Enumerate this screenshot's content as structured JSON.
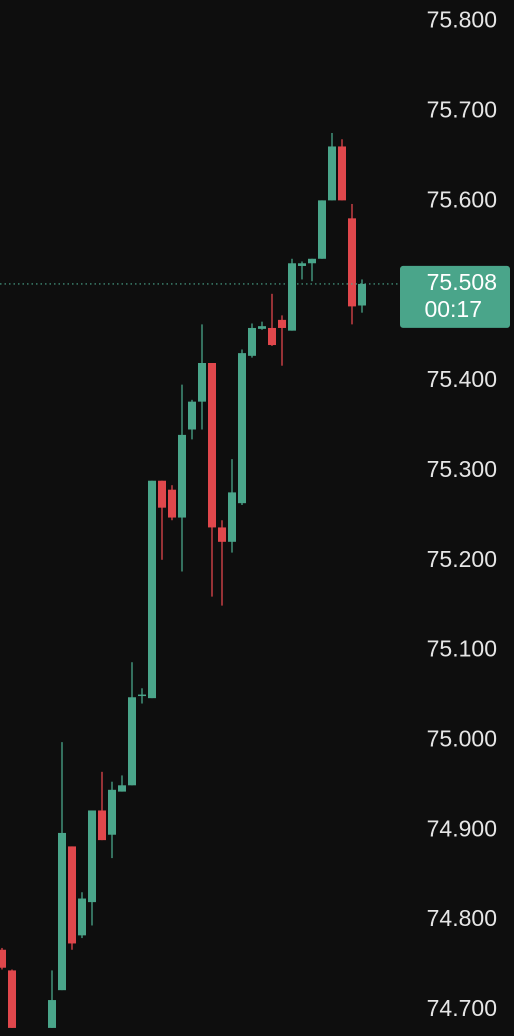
{
  "chart_data": {
    "type": "candlestick",
    "up_color": "#4aa58a",
    "down_color": "#e0474c",
    "ylim": [
      74.671,
      75.824
    ],
    "yticks": [
      {
        "value": 75.8,
        "label": "75.800"
      },
      {
        "value": 75.7,
        "label": "75.700"
      },
      {
        "value": 75.6,
        "label": "75.600"
      },
      {
        "value": 75.4,
        "label": "75.400"
      },
      {
        "value": 75.3,
        "label": "75.300"
      },
      {
        "value": 75.2,
        "label": "75.200"
      },
      {
        "value": 75.1,
        "label": "75.100"
      },
      {
        "value": 75.0,
        "label": "75.000"
      },
      {
        "value": 74.9,
        "label": "74.900"
      },
      {
        "value": 74.8,
        "label": "74.800"
      },
      {
        "value": 74.7,
        "label": "74.700"
      }
    ],
    "open": [
      74.767,
      74.744,
      null,
      null,
      null,
      74.68,
      74.722,
      74.882,
      74.783,
      74.82,
      74.922,
      74.895,
      74.943,
      74.95,
      75.05,
      75.047,
      75.289,
      75.279,
      75.248,
      75.346,
      75.377,
      75.42,
      75.237,
      75.221,
      75.264,
      75.428,
      75.458,
      75.459,
      75.468,
      75.456,
      75.528,
      75.531,
      75.536,
      75.601,
      75.661,
      75.581,
      75.484
    ],
    "high": [
      74.769,
      74.745,
      null,
      null,
      null,
      74.744,
      74.998,
      74.882,
      74.831,
      74.922,
      74.965,
      74.954,
      74.961,
      75.087,
      75.058,
      75.289,
      75.289,
      75.284,
      75.396,
      75.379,
      75.463,
      75.42,
      75.245,
      75.313,
      75.435,
      75.464,
      75.466,
      75.497,
      75.473,
      75.536,
      75.533,
      75.536,
      75.601,
      75.676,
      75.669,
      75.597,
      75.513
    ],
    "low": [
      74.745,
      74.68,
      null,
      null,
      null,
      74.68,
      74.722,
      74.767,
      74.78,
      74.794,
      74.889,
      74.869,
      74.943,
      74.95,
      75.041,
      75.047,
      75.201,
      75.245,
      75.188,
      75.335,
      75.346,
      75.16,
      75.15,
      75.209,
      75.262,
      75.426,
      75.457,
      75.439,
      75.417,
      75.456,
      75.513,
      75.511,
      75.536,
      75.601,
      75.601,
      75.463,
      75.476
    ],
    "close": [
      74.747,
      74.68,
      null,
      null,
      null,
      74.711,
      74.897,
      74.774,
      74.824,
      74.922,
      74.889,
      74.945,
      74.95,
      75.048,
      75.051,
      75.289,
      75.259,
      75.248,
      75.34,
      75.377,
      75.42,
      75.237,
      75.221,
      75.276,
      75.431,
      75.459,
      75.461,
      75.44,
      75.459,
      75.531,
      75.531,
      75.536,
      75.601,
      75.661,
      75.601,
      75.483,
      75.508
    ],
    "last_price": 75.508,
    "countdown": "00:17"
  }
}
